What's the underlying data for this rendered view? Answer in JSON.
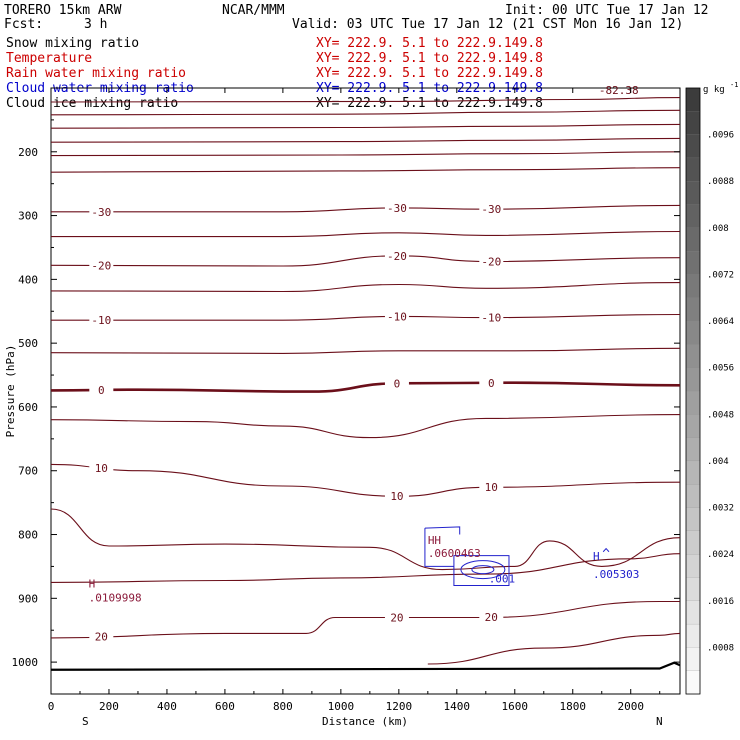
{
  "header": {
    "model": "TORERO  15km ARW",
    "center": "NCAR/MMM",
    "init": "Init: 00 UTC Tue 17 Jan 12",
    "fcst_label": "Fcst:",
    "fcst_value": "3 h",
    "valid": "Valid: 03 UTC Tue 17 Jan 12 (21 CST Mon 16 Jan 12)"
  },
  "fields": [
    {
      "name": "Snow mixing ratio",
      "xy": "XY= 222.9.  5.1 to 222.9.149.8",
      "color": "#000000"
    },
    {
      "name": "Temperature",
      "xy": "XY= 222.9.  5.1 to 222.9.149.8",
      "color": "#cc0000"
    },
    {
      "name": "Rain water mixing ratio",
      "xy": "XY= 222.9.  5.1 to 222.9.149.8",
      "color": "#cc0000"
    },
    {
      "name": "Cloud water mixing ratio",
      "xy": "XY= 222.9.  5.1 to 222.9.149.8",
      "color": "#0000cc"
    },
    {
      "name": "Cloud ice mixing ratio",
      "xy": "XY= 222.9.  5.1 to 222.9.149.8",
      "color": "#000000"
    }
  ],
  "colors": {
    "temp": "#6b0f1a",
    "cloud_water": "#2222cc",
    "rain": "#8b1a3a",
    "axis": "#000000"
  },
  "chart_data": {
    "type": "contour-cross-section",
    "title": "Snow mixing ratio / Temperature / Rain water / Cloud water / Cloud ice",
    "xlabel": "Distance (km)",
    "ylabel": "Pressure (hPa)",
    "xlim": [
      0,
      2170
    ],
    "ylim": [
      1050,
      100
    ],
    "xticks": [
      0,
      200,
      400,
      600,
      800,
      1000,
      1200,
      1400,
      1600,
      1800,
      2000
    ],
    "xtick_labels": [
      "0",
      "200",
      "400",
      "600",
      "800",
      "1000",
      "1200",
      "1400",
      "1600",
      "1800",
      "2000"
    ],
    "yticks": [
      200,
      300,
      400,
      500,
      600,
      700,
      800,
      900,
      1000
    ],
    "ytick_labels": [
      "200",
      "300",
      "400",
      "500",
      "600",
      "700",
      "800",
      "900",
      "1000"
    ],
    "endpoints": {
      "left": "S",
      "right": "N"
    },
    "colorbar": {
      "units": "g kg",
      "units_exp": "-1",
      "labels": [
        ".0096",
        ".0088",
        ".008",
        ".0072",
        ".0064",
        ".0056",
        ".0048",
        ".004",
        ".0032",
        ".0024",
        ".0016",
        ".0008"
      ],
      "label_values": [
        0.0096,
        0.0088,
        0.008,
        0.0072,
        0.0064,
        0.0056,
        0.0048,
        0.004,
        0.0032,
        0.0024,
        0.0016,
        0.0008
      ]
    },
    "temperature_contours": [
      {
        "value": -82.38,
        "points": [
          [
            0,
            122
          ],
          [
            1200,
            121
          ],
          [
            1800,
            118
          ],
          [
            2170,
            115
          ]
        ]
      },
      {
        "value": null,
        "points": [
          [
            0,
            142
          ],
          [
            1000,
            141
          ],
          [
            1600,
            138
          ],
          [
            2170,
            135
          ]
        ]
      },
      {
        "value": null,
        "points": [
          [
            0,
            163
          ],
          [
            1000,
            162
          ],
          [
            1600,
            160
          ],
          [
            2170,
            157
          ]
        ]
      },
      {
        "value": null,
        "points": [
          [
            0,
            185
          ],
          [
            1000,
            184
          ],
          [
            1600,
            182
          ],
          [
            2170,
            179
          ]
        ]
      },
      {
        "value": null,
        "points": [
          [
            0,
            206
          ],
          [
            1000,
            205
          ],
          [
            1600,
            203
          ],
          [
            2170,
            200
          ]
        ]
      },
      {
        "value": null,
        "points": [
          [
            0,
            232
          ],
          [
            1000,
            230
          ],
          [
            1600,
            228
          ],
          [
            2170,
            225
          ]
        ]
      },
      {
        "value": -30,
        "points": [
          [
            0,
            294
          ],
          [
            800,
            294
          ],
          [
            1200,
            288
          ],
          [
            1500,
            290
          ],
          [
            2170,
            284
          ]
        ]
      },
      {
        "value": null,
        "points": [
          [
            0,
            333
          ],
          [
            800,
            333
          ],
          [
            1200,
            327
          ],
          [
            1500,
            331
          ],
          [
            2170,
            325
          ]
        ]
      },
      {
        "value": -20,
        "points": [
          [
            0,
            378
          ],
          [
            800,
            379
          ],
          [
            1200,
            363
          ],
          [
            1500,
            372
          ],
          [
            2170,
            366
          ]
        ]
      },
      {
        "value": null,
        "points": [
          [
            0,
            418
          ],
          [
            800,
            419
          ],
          [
            1200,
            408
          ],
          [
            1500,
            414
          ],
          [
            2170,
            405
          ]
        ]
      },
      {
        "value": -10,
        "points": [
          [
            0,
            464
          ],
          [
            800,
            464
          ],
          [
            1200,
            458
          ],
          [
            1500,
            460
          ],
          [
            2170,
            455
          ]
        ]
      },
      {
        "value": null,
        "points": [
          [
            0,
            515
          ],
          [
            800,
            516
          ],
          [
            1200,
            512
          ],
          [
            1600,
            512
          ],
          [
            2170,
            508
          ]
        ]
      },
      {
        "value": 0,
        "points": [
          [
            0,
            574
          ],
          [
            300,
            573
          ],
          [
            900,
            576
          ],
          [
            1200,
            563
          ],
          [
            1600,
            562
          ],
          [
            2170,
            566
          ]
        ]
      },
      {
        "value": null,
        "points": [
          [
            0,
            620
          ],
          [
            500,
            623
          ],
          [
            800,
            630
          ],
          [
            1100,
            648
          ],
          [
            1500,
            618
          ],
          [
            2170,
            612
          ]
        ]
      },
      {
        "value": 10,
        "points": [
          [
            0,
            690
          ],
          [
            300,
            700
          ],
          [
            800,
            724
          ],
          [
            1200,
            740
          ],
          [
            1500,
            726
          ],
          [
            2170,
            718
          ]
        ]
      },
      {
        "value": null,
        "points": [
          [
            0,
            760
          ],
          [
            200,
            818
          ],
          [
            600,
            815
          ],
          [
            1100,
            820
          ],
          [
            1350,
            855
          ],
          [
            1600,
            850
          ],
          [
            1720,
            810
          ],
          [
            1900,
            850
          ],
          [
            2170,
            805
          ]
        ]
      },
      {
        "value": null,
        "points": [
          [
            0,
            875
          ],
          [
            600,
            872
          ],
          [
            1000,
            868
          ],
          [
            1500,
            862
          ],
          [
            2000,
            838
          ],
          [
            2170,
            830
          ]
        ]
      },
      {
        "value": 20,
        "points": [
          [
            0,
            962
          ],
          [
            600,
            955
          ],
          [
            880,
            955
          ],
          [
            980,
            930
          ],
          [
            1500,
            930
          ],
          [
            2100,
            905
          ],
          [
            2170,
            905
          ]
        ]
      },
      {
        "value": null,
        "points": [
          [
            1300,
            1003
          ],
          [
            1700,
            978
          ],
          [
            2100,
            958
          ],
          [
            2170,
            955
          ]
        ]
      }
    ],
    "annotations": [
      {
        "text": "H",
        "x": 130,
        "p": 883,
        "color": "#8b1a3a"
      },
      {
        "text": ".0109998",
        "x": 130,
        "p": 905,
        "color": "#8b1a3a"
      },
      {
        "text": "HH",
        "x": 1300,
        "p": 815,
        "color": "#8b1a3a"
      },
      {
        "text": ".0600463",
        "x": 1300,
        "p": 835,
        "color": "#8b1a3a"
      },
      {
        "text": ".001",
        "x": 1510,
        "p": 875,
        "color": "#2222cc"
      },
      {
        "text": "H",
        "x": 1870,
        "p": 840,
        "color": "#2222cc"
      },
      {
        "text": ".005303",
        "x": 1870,
        "p": 868,
        "color": "#2222cc"
      }
    ]
  }
}
